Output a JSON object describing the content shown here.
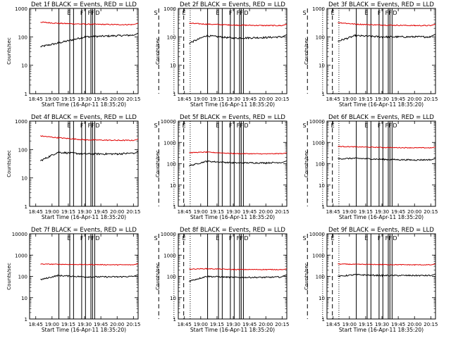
{
  "figure": {
    "series_legend": {
      "events_color": "#000000",
      "lld_color": "#e00000"
    },
    "ylabel": "Counts/sec",
    "xlabel": "Start Time (16-Apr-11 18:35:20)",
    "xticks": [
      "18:45",
      "19:00",
      "19:15",
      "19:30",
      "19:45",
      "20:00",
      "20:15"
    ],
    "yticks": [
      "1",
      "10",
      "100",
      "1000",
      "10000"
    ],
    "flags": [
      {
        "label": "E",
        "x_min": 38
      },
      {
        "label": "F",
        "x_min": 50
      },
      {
        "label": "FF",
        "x_min": 57
      },
      {
        "label": "D",
        "x_min": 64
      },
      {
        "label": "S",
        "x_min": 118
      },
      {
        "label": "E",
        "x_min": 144
      }
    ],
    "solid_lines_min": [
      31,
      41,
      44.5,
      52,
      55.5,
      60.5,
      62,
      64
    ],
    "dashed_lines_min": [
      123,
      146
    ],
    "dotted_lines_min": [
      137,
      152
    ]
  },
  "chart_data": [
    {
      "type": "line",
      "title": "Det 1f BLACK = Events, RED = LLD",
      "xlim_min": [
        4,
        104
      ],
      "ylim": [
        1,
        1000
      ],
      "series": [
        {
          "name": "Events",
          "color": "#000000",
          "values": [
            [
              14,
              45
            ],
            [
              30,
              60
            ],
            [
              55,
              100
            ],
            [
              85,
              110
            ],
            [
              100,
              115
            ]
          ]
        },
        {
          "name": "LLD",
          "color": "#e00000",
          "values": [
            [
              14,
              330
            ],
            [
              30,
              300
            ],
            [
              55,
              280
            ],
            [
              85,
              270
            ],
            [
              100,
              270
            ]
          ]
        }
      ]
    },
    {
      "type": "line",
      "title": "Det 2f BLACK = Events, RED = LLD",
      "xlim_min": [
        4,
        104
      ],
      "ylim": [
        1,
        1000
      ],
      "series": [
        {
          "name": "Events",
          "color": "#000000",
          "values": [
            [
              14,
              60
            ],
            [
              30,
              110
            ],
            [
              55,
              90
            ],
            [
              85,
              95
            ],
            [
              100,
              100
            ]
          ]
        },
        {
          "name": "LLD",
          "color": "#e00000",
          "values": [
            [
              14,
              300
            ],
            [
              30,
              280
            ],
            [
              55,
              260
            ],
            [
              85,
              250
            ],
            [
              100,
              250
            ]
          ]
        }
      ]
    },
    {
      "type": "line",
      "title": "Det 3f BLACK = Events, RED = LLD",
      "xlim_min": [
        4,
        104
      ],
      "ylim": [
        1,
        1000
      ],
      "series": [
        {
          "name": "Events",
          "color": "#000000",
          "values": [
            [
              14,
              70
            ],
            [
              30,
              110
            ],
            [
              55,
              100
            ],
            [
              85,
              100
            ],
            [
              100,
              100
            ]
          ]
        },
        {
          "name": "LLD",
          "color": "#e00000",
          "values": [
            [
              14,
              320
            ],
            [
              30,
              280
            ],
            [
              55,
              260
            ],
            [
              85,
              250
            ],
            [
              100,
              250
            ]
          ]
        }
      ]
    },
    {
      "type": "line",
      "title": "Det 4f BLACK = Events, RED = LLD",
      "xlim_min": [
        4,
        104
      ],
      "ylim": [
        1,
        1000
      ],
      "series": [
        {
          "name": "Events",
          "color": "#000000",
          "values": [
            [
              14,
              40
            ],
            [
              30,
              80
            ],
            [
              55,
              70
            ],
            [
              85,
              70
            ],
            [
              100,
              75
            ]
          ]
        },
        {
          "name": "LLD",
          "color": "#e00000",
          "values": [
            [
              14,
              300
            ],
            [
              30,
              260
            ],
            [
              55,
              220
            ],
            [
              85,
              210
            ],
            [
              100,
              210
            ]
          ]
        }
      ]
    },
    {
      "type": "line",
      "title": "Det 5f BLACK = Events, RED = LLD",
      "xlim_min": [
        4,
        104
      ],
      "ylim": [
        1,
        10000
      ],
      "series": [
        {
          "name": "Events",
          "color": "#000000",
          "values": [
            [
              14,
              80
            ],
            [
              30,
              130
            ],
            [
              55,
              110
            ],
            [
              85,
              110
            ],
            [
              100,
              115
            ]
          ]
        },
        {
          "name": "LLD",
          "color": "#e00000",
          "values": [
            [
              14,
              330
            ],
            [
              30,
              350
            ],
            [
              55,
              300
            ],
            [
              85,
              290
            ],
            [
              100,
              300
            ]
          ]
        }
      ]
    },
    {
      "type": "line",
      "title": "Det 6f BLACK = Events, RED = LLD",
      "xlim_min": [
        4,
        104
      ],
      "ylim": [
        1,
        10000
      ],
      "series": [
        {
          "name": "Events",
          "color": "#000000",
          "values": [
            [
              14,
              170
            ],
            [
              30,
              180
            ],
            [
              55,
              160
            ],
            [
              85,
              150
            ],
            [
              100,
              155
            ]
          ]
        },
        {
          "name": "LLD",
          "color": "#e00000",
          "values": [
            [
              14,
              650
            ],
            [
              30,
              620
            ],
            [
              55,
              580
            ],
            [
              85,
              560
            ],
            [
              100,
              560
            ]
          ]
        }
      ]
    },
    {
      "type": "line",
      "title": "Det 7f BLACK = Events, RED = LLD",
      "xlim_min": [
        4,
        104
      ],
      "ylim": [
        1,
        10000
      ],
      "series": [
        {
          "name": "Events",
          "color": "#000000",
          "values": [
            [
              14,
              70
            ],
            [
              30,
              110
            ],
            [
              55,
              95
            ],
            [
              85,
              95
            ],
            [
              100,
              100
            ]
          ]
        },
        {
          "name": "LLD",
          "color": "#e00000",
          "values": [
            [
              14,
              380
            ],
            [
              30,
              370
            ],
            [
              55,
              360
            ],
            [
              85,
              350
            ],
            [
              100,
              350
            ]
          ]
        }
      ]
    },
    {
      "type": "line",
      "title": "Det 8f BLACK = Events, RED = LLD",
      "xlim_min": [
        4,
        104
      ],
      "ylim": [
        1,
        10000
      ],
      "series": [
        {
          "name": "Events",
          "color": "#000000",
          "values": [
            [
              14,
              60
            ],
            [
              30,
              100
            ],
            [
              55,
              90
            ],
            [
              85,
              90
            ],
            [
              100,
              95
            ]
          ]
        },
        {
          "name": "LLD",
          "color": "#e00000",
          "values": [
            [
              14,
              220
            ],
            [
              30,
              230
            ],
            [
              55,
              210
            ],
            [
              85,
              210
            ],
            [
              100,
              210
            ]
          ]
        }
      ]
    },
    {
      "type": "line",
      "title": "Det 9f BLACK = Events, RED = LLD",
      "xlim_min": [
        4,
        104
      ],
      "ylim": [
        1,
        10000
      ],
      "series": [
        {
          "name": "Events",
          "color": "#000000",
          "values": [
            [
              14,
              100
            ],
            [
              30,
              120
            ],
            [
              55,
              110
            ],
            [
              85,
              110
            ],
            [
              100,
              110
            ]
          ]
        },
        {
          "name": "LLD",
          "color": "#e00000",
          "values": [
            [
              14,
              380
            ],
            [
              30,
              370
            ],
            [
              55,
              360
            ],
            [
              85,
              350
            ],
            [
              100,
              350
            ]
          ]
        }
      ]
    }
  ]
}
